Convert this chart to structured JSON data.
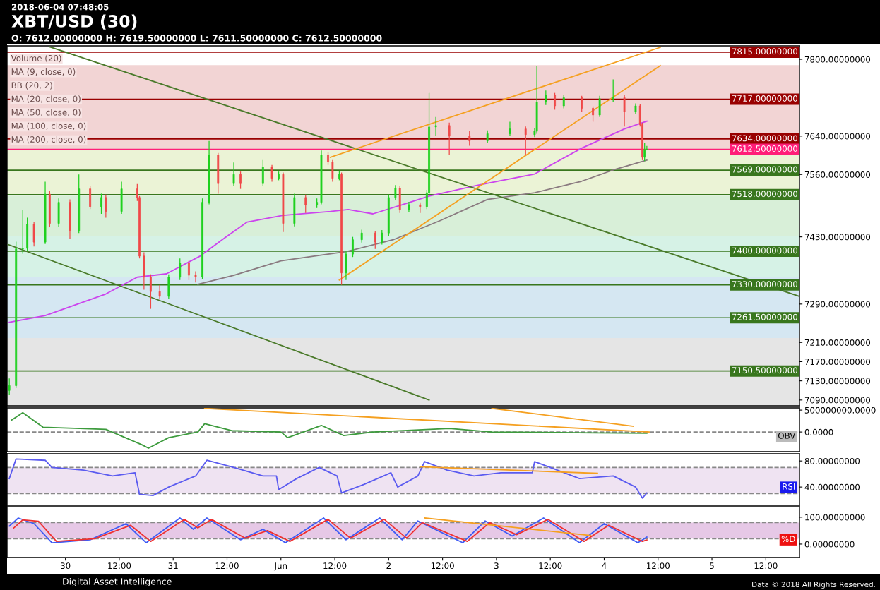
{
  "chart_data": [
    {
      "type": "candlestick",
      "title": "XBT/USD (30)",
      "subtitle": "O: 7612.00000000 H: 7619.50000000 L: 7611.50000000 C: 7612.50000000",
      "annotations": [
        "2018-06-04 07:48:05",
        "Volume (20)",
        "MA (9, close, 0)",
        "BB (20, 2)",
        "MA (20, close, 0)",
        "MA (50, close, 0)",
        "MA (100, close, 0)",
        "MA (200, close, 0)",
        "Digital Asset Intelligence",
        "Data © 2018 All Rights Reserved."
      ],
      "colors": [
        "#1fd11f",
        "#1fd11f",
        "#1fd11f",
        "#1fd11f",
        "#f04848",
        "#1fd11f",
        "#f04848",
        "#1fd11f",
        "#f04848",
        "#1fd11f",
        "#f04848",
        "#1fd11f",
        "#f04848",
        "#1fd11f",
        "#f04848",
        "#f04848",
        "#f04848",
        "#f04848",
        "#f04848",
        "#1fd11f",
        "#1fd11f",
        "#f04848",
        "#f04848",
        "#1fd11f",
        "#1fd11f",
        "#f04848",
        "#1fd11f",
        "#f04848",
        "#1fd11f",
        "#f04848",
        "#1fd11f",
        "#f04848",
        "#1fd11f",
        "#f04848",
        "#1fd11f",
        "#1fd11f",
        "#f04848",
        "#f04848",
        "#1fd11f",
        "#f04848",
        "#1fd11f",
        "#1fd11f",
        "#1fd11f",
        "#f04848",
        "#1fd11f",
        "#1fd11f",
        "#1fd11f",
        "#f04848",
        "#1fd11f",
        "#f04848",
        "#1fd11f",
        "#1fd11f",
        "#1fd11f",
        "#f04848",
        "#f04848",
        "#1fd11f",
        "#1fd11f",
        "#f04848",
        "#1fd11f",
        "#1fd11f",
        "#1fd11f",
        "#f04848",
        "#1fd11f",
        "#f04848",
        "#f04848",
        "#1fd11f",
        "#1fd11f",
        "#f04848",
        "#1fd11f",
        "#f04848",
        "#f04848",
        "#1fd11f",
        "#1fd11f"
      ],
      "x": [
        "2018-05-29T11:30",
        "2018-05-29T13:00",
        "2018-05-29T14:30",
        "2018-05-29T15:30",
        "2018-05-29T17:00",
        "2018-05-29T19:30",
        "2018-05-29T20:30",
        "2018-05-29T22:30",
        "2018-05-30T01:00",
        "2018-05-30T03:00",
        "2018-05-30T05:30",
        "2018-05-30T08:00",
        "2018-05-30T09:00",
        "2018-05-30T12:30",
        "2018-05-30T16:00",
        "2018-05-30T16:30",
        "2018-05-30T17:30",
        "2018-05-30T19:00",
        "2018-05-30T21:00",
        "2018-05-30T23:00",
        "2018-05-31T01:30",
        "2018-05-31T03:30",
        "2018-05-31T05:00",
        "2018-05-31T06:30",
        "2018-05-31T08:00",
        "2018-05-31T10:00",
        "2018-05-31T13:30",
        "2018-05-31T15:00",
        "2018-05-31T20:00",
        "2018-05-31T22:00",
        "2018-05-31T23:30",
        "2018-06-01T00:30",
        "2018-06-01T03:00",
        "2018-06-01T05:30",
        "2018-06-01T08:00",
        "2018-06-01T09:00",
        "2018-06-01T10:30",
        "2018-06-01T11:30",
        "2018-06-01T13:00",
        "2018-06-01T13:30",
        "2018-06-01T14:30",
        "2018-06-01T16:00",
        "2018-06-01T18:00",
        "2018-06-01T21:00",
        "2018-06-01T22:30",
        "2018-06-02T00:00",
        "2018-06-02T01:30",
        "2018-06-02T02:30",
        "2018-06-02T04:30",
        "2018-06-02T07:00",
        "2018-06-02T08:30",
        "2018-06-02T09:00",
        "2018-06-02T10:30",
        "2018-06-02T13:30",
        "2018-06-02T18:00",
        "2018-06-02T22:00",
        "2018-06-03T03:00",
        "2018-06-03T06:30",
        "2018-06-03T08:30",
        "2018-06-03T09:00",
        "2018-06-03T11:00",
        "2018-06-03T13:00",
        "2018-06-03T15:00",
        "2018-06-03T19:00",
        "2018-06-03T21:30",
        "2018-06-03T23:00",
        "2018-06-04T02:00",
        "2018-06-04T04:30",
        "2018-06-04T07:00",
        "2018-06-04T08:00",
        "2018-06-04T08:30",
        "2018-06-04T09:00",
        "2018-06-04T09:30"
      ],
      "ohlc": [
        [
          7110,
          7135,
          7100,
          7120
        ],
        [
          7120,
          7420,
          7115,
          7405
        ],
        [
          7405,
          7487,
          7395,
          7406
        ],
        [
          7406,
          7470,
          7400,
          7456
        ],
        [
          7456,
          7462,
          7410,
          7419
        ],
        [
          7419,
          7545,
          7415,
          7519
        ],
        [
          7519,
          7525,
          7450,
          7458
        ],
        [
          7458,
          7510,
          7450,
          7502
        ],
        [
          7502,
          7508,
          7425,
          7443
        ],
        [
          7443,
          7560,
          7438,
          7530
        ],
        [
          7530,
          7536,
          7488,
          7493
        ],
        [
          7493,
          7520,
          7478,
          7512
        ],
        [
          7512,
          7518,
          7470,
          7483
        ],
        [
          7483,
          7545,
          7478,
          7530
        ],
        [
          7530,
          7540,
          7505,
          7512
        ],
        [
          7512,
          7515,
          7385,
          7390
        ],
        [
          7390,
          7398,
          7320,
          7346
        ],
        [
          7346,
          7352,
          7280,
          7316
        ],
        [
          7316,
          7330,
          7300,
          7306
        ],
        [
          7306,
          7352,
          7300,
          7346
        ],
        [
          7346,
          7385,
          7340,
          7375
        ],
        [
          7375,
          7380,
          7340,
          7350
        ],
        [
          7350,
          7358,
          7335,
          7347
        ],
        [
          7347,
          7510,
          7342,
          7502
        ],
        [
          7502,
          7630,
          7498,
          7600
        ],
        [
          7600,
          7605,
          7520,
          7541
        ],
        [
          7541,
          7585,
          7536,
          7560
        ],
        [
          7560,
          7566,
          7530,
          7541
        ],
        [
          7541,
          7590,
          7536,
          7575
        ],
        [
          7575,
          7580,
          7545,
          7552
        ],
        [
          7552,
          7566,
          7548,
          7560
        ],
        [
          7560,
          7564,
          7440,
          7458
        ],
        [
          7458,
          7520,
          7452,
          7512
        ],
        [
          7512,
          7518,
          7480,
          7497
        ],
        [
          7497,
          7510,
          7490,
          7502
        ],
        [
          7502,
          7610,
          7498,
          7600
        ],
        [
          7600,
          7606,
          7580,
          7586
        ],
        [
          7586,
          7590,
          7545,
          7552
        ],
        [
          7552,
          7568,
          7548,
          7560
        ],
        [
          7560,
          7564,
          7330,
          7355
        ],
        [
          7355,
          7400,
          7340,
          7394
        ],
        [
          7394,
          7430,
          7388,
          7424
        ],
        [
          7424,
          7445,
          7418,
          7438
        ],
        [
          7438,
          7442,
          7405,
          7419
        ],
        [
          7419,
          7444,
          7414,
          7438
        ],
        [
          7438,
          7518,
          7432,
          7512
        ],
        [
          7512,
          7538,
          7506,
          7531
        ],
        [
          7531,
          7536,
          7480,
          7487
        ],
        [
          7487,
          7503,
          7482,
          7497
        ],
        [
          7497,
          7502,
          7480,
          7493
        ],
        [
          7493,
          7528,
          7488,
          7522
        ],
        [
          7522,
          7730,
          7518,
          7659
        ],
        [
          7659,
          7680,
          7640,
          7662
        ],
        [
          7662,
          7668,
          7600,
          7640
        ],
        [
          7640,
          7650,
          7620,
          7630
        ],
        [
          7630,
          7652,
          7625,
          7645
        ],
        [
          7645,
          7670,
          7640,
          7655
        ],
        [
          7655,
          7660,
          7600,
          7643
        ],
        [
          7643,
          7656,
          7638,
          7650
        ],
        [
          7650,
          7787,
          7645,
          7711
        ],
        [
          7711,
          7735,
          7705,
          7725
        ],
        [
          7725,
          7730,
          7695,
          7703
        ],
        [
          7703,
          7726,
          7698,
          7720
        ],
        [
          7720,
          7724,
          7690,
          7698
        ],
        [
          7698,
          7702,
          7670,
          7684
        ],
        [
          7684,
          7724,
          7680,
          7718
        ],
        [
          7718,
          7758,
          7712,
          7720
        ],
        [
          7720,
          7725,
          7660,
          7691
        ],
        [
          7691,
          7708,
          7686,
          7703
        ],
        [
          7703,
          7706,
          7660,
          7664
        ],
        [
          7664,
          7668,
          7590,
          7596
        ],
        [
          7596,
          7625,
          7588,
          7612
        ],
        [
          7612,
          7619.5,
          7611.5,
          7612.5
        ]
      ],
      "series": [
        {
          "type": "line",
          "color": "#cc44ee",
          "x": [
            "2018-05-29T11:30",
            "2018-05-29T19:30",
            "2018-05-30T09:00",
            "2018-05-30T16:00",
            "2018-05-30T22:30",
            "2018-05-31T06:00",
            "2018-05-31T11:30",
            "2018-05-31T16:30",
            "2018-06-01T00:30",
            "2018-06-01T11:00",
            "2018-06-01T15:00",
            "2018-06-01T20:30",
            "2018-06-02T03:00",
            "2018-06-02T09:00",
            "2018-06-02T19:30",
            "2018-06-03T08:30",
            "2018-06-03T19:00",
            "2018-06-04T04:30",
            "2018-06-04T09:30"
          ],
          "values": [
            7252,
            7266,
            7311,
            7346,
            7353,
            7390,
            7428,
            7461,
            7475,
            7483,
            7487,
            7478,
            7497,
            7515,
            7537,
            7561,
            7615,
            7655,
            7671
          ]
        },
        {
          "type": "line",
          "color": "#8a7a80",
          "x": [
            "2018-05-31T05:30",
            "2018-05-31T13:30",
            "2018-06-01T00:00",
            "2018-06-01T10:30",
            "2018-06-01T14:30",
            "2018-06-02T01:00",
            "2018-06-02T11:30",
            "2018-06-02T22:00",
            "2018-06-03T08:30",
            "2018-06-03T19:00",
            "2018-06-04T02:30",
            "2018-06-04T09:30"
          ],
          "values": [
            7331,
            7350,
            7380,
            7394,
            7399,
            7424,
            7464,
            7508,
            7522,
            7546,
            7571,
            7590
          ]
        },
        {
          "type": "line",
          "color": "#4a7a2a",
          "x": [
            "2018-05-29T20:30",
            "2018-06-05T19:30"
          ],
          "values": [
            7826,
            7306
          ]
        },
        {
          "type": "line",
          "color": "#4a7a2a",
          "x": [
            "2018-05-29T11:15",
            "2018-06-02T09:00"
          ],
          "values": [
            7414,
            7090
          ]
        },
        {
          "type": "line",
          "color": "#f5a020",
          "x": [
            "2018-06-01T11:00",
            "2018-06-04T12:30"
          ],
          "values": [
            7596,
            7825
          ]
        },
        {
          "type": "line",
          "color": "#f5a020",
          "x": [
            "2018-06-01T13:00",
            "2018-06-04T12:30"
          ],
          "values": [
            7340,
            7787
          ]
        }
      ],
      "bands": [
        {
          "axis": "y",
          "from": 7612.5,
          "to": 7788,
          "color": "#f2d4d4"
        },
        {
          "axis": "y",
          "from": 7516,
          "to": 7612.5,
          "color": "#ebf3d6"
        },
        {
          "axis": "y",
          "from": 7431,
          "to": 7516,
          "color": "#d8efd8"
        },
        {
          "axis": "y",
          "from": 7346,
          "to": 7431,
          "color": "#d6f2e6"
        },
        {
          "axis": "y",
          "from": 7219,
          "to": 7346,
          "color": "#d5e7f2"
        },
        {
          "axis": "y",
          "from": 7078,
          "to": 7219,
          "color": "#e5e5e5"
        }
      ],
      "ref_lines": [
        {
          "axis": "y",
          "value": 7815,
          "label": "7815.00000000",
          "color": "#990000"
        },
        {
          "axis": "y",
          "value": 7717,
          "label": "7717.00000000",
          "color": "#990000"
        },
        {
          "axis": "y",
          "value": 7634,
          "label": "7634.00000000",
          "color": "#990000"
        },
        {
          "axis": "y",
          "value": 7612.5,
          "label": "7612.50000000",
          "color": "#ff1e78"
        },
        {
          "axis": "y",
          "value": 7569,
          "label": "7569.00000000",
          "color": "#38761d"
        },
        {
          "axis": "y",
          "value": 7518,
          "label": "7518.00000000",
          "color": "#38761d"
        },
        {
          "axis": "y",
          "value": 7400,
          "label": "7400.00000000",
          "color": "#38761d"
        },
        {
          "axis": "y",
          "value": 7330,
          "label": "7330.00000000",
          "color": "#38761d"
        },
        {
          "axis": "y",
          "value": 7261.5,
          "label": "7261.50000000",
          "color": "#38761d"
        },
        {
          "axis": "y",
          "value": 7150.5,
          "label": "7150.50000000",
          "color": "#38761d"
        }
      ],
      "ylim": [
        7078,
        7828
      ],
      "yticks": [
        {
          "value": 7800,
          "label": "7800.00000000"
        },
        {
          "value": 7640,
          "label": "7640.00000000"
        },
        {
          "value": 7560,
          "label": "7560.00000000"
        },
        {
          "value": 7430,
          "label": "7430.00000000"
        },
        {
          "value": 7290,
          "label": "7290.00000000"
        },
        {
          "value": 7210,
          "label": "7210.00000000"
        },
        {
          "value": 7170,
          "label": "7170.00000000"
        },
        {
          "value": 7130,
          "label": "7130.00000000"
        },
        {
          "value": 7090,
          "label": "7090.00000000"
        }
      ],
      "xlim": [
        "2018-05-29T11:00",
        "2018-06-05T19:30"
      ],
      "tick_labels": "y",
      "grid": false,
      "legend": false
    },
    {
      "type": "line",
      "annotations": [
        "OBV"
      ],
      "series": [
        {
          "type": "line",
          "color": "#3d9b3d",
          "x": [
            "2018-05-29T12:00",
            "2018-05-29T14:30",
            "2018-05-29T19:00",
            "2018-05-30T09:00",
            "2018-05-30T17:00",
            "2018-05-30T18:30",
            "2018-05-30T23:00",
            "2018-05-31T05:30",
            "2018-05-31T07:00",
            "2018-05-31T13:00",
            "2018-06-01T00:00",
            "2018-06-01T01:30",
            "2018-06-01T09:00",
            "2018-06-01T14:00",
            "2018-06-01T20:30",
            "2018-06-02T13:30",
            "2018-06-02T23:00",
            "2018-06-03T22:30",
            "2018-06-04T09:30"
          ],
          "values": [
            270000000,
            440000000,
            110000000,
            60000000,
            -290000000,
            -370000000,
            -130000000,
            0,
            190000000,
            30000000,
            0,
            -130000000,
            150000000,
            -80000000,
            0,
            80000000,
            0,
            -20000000,
            -30000000
          ]
        },
        {
          "type": "line",
          "color": "#f5a020",
          "x": [
            "2018-05-31T07:00",
            "2018-06-04T10:00"
          ],
          "values": [
            540000000,
            0
          ]
        },
        {
          "type": "line",
          "color": "#f5a020",
          "x": [
            "2018-06-02T23:00",
            "2018-06-04T06:30"
          ],
          "values": [
            540000000,
            130000000
          ]
        }
      ],
      "ref_lines": [
        {
          "axis": "y",
          "value": 0,
          "color": "#888888",
          "line_style": "dashed"
        }
      ],
      "ylim": [
        -450000000,
        550000000
      ],
      "yticks": [
        {
          "value": 500000000,
          "label": "500000000.0000"
        },
        {
          "value": 0,
          "label": "0.0000"
        }
      ],
      "xlim": [
        "2018-05-29T11:00",
        "2018-06-05T19:30"
      ],
      "tick_labels": "y",
      "grid": false,
      "legend": false
    },
    {
      "type": "line",
      "annotations": [
        "RSI"
      ],
      "series": [
        {
          "type": "line",
          "color": "#5b5bf0",
          "x": [
            "2018-05-29T11:30",
            "2018-05-29T13:00",
            "2018-05-29T19:30",
            "2018-05-29T21:00",
            "2018-05-30T04:00",
            "2018-05-30T10:30",
            "2018-05-30T15:30",
            "2018-05-30T16:30",
            "2018-05-30T19:30",
            "2018-05-30T23:00",
            "2018-05-31T05:00",
            "2018-05-31T07:30",
            "2018-05-31T13:30",
            "2018-05-31T20:00",
            "2018-05-31T23:00",
            "2018-05-31T23:30",
            "2018-06-01T03:30",
            "2018-06-01T08:30",
            "2018-06-01T12:30",
            "2018-06-01T13:30",
            "2018-06-01T18:30",
            "2018-06-02T00:30",
            "2018-06-02T02:00",
            "2018-06-02T06:30",
            "2018-06-02T08:00",
            "2018-06-02T13:00",
            "2018-06-02T19:00",
            "2018-06-03T01:00",
            "2018-06-03T08:00",
            "2018-06-03T08:30",
            "2018-06-03T12:00",
            "2018-06-03T18:30",
            "2018-06-04T02:00",
            "2018-06-04T07:00",
            "2018-06-04T08:30",
            "2018-06-04T09:30"
          ],
          "values": [
            53,
            83,
            81,
            70,
            66,
            57,
            62,
            29,
            27,
            40,
            57,
            81,
            70,
            57,
            57,
            36,
            53,
            70,
            57,
            31,
            44,
            62,
            40,
            57,
            79,
            66,
            57,
            62,
            62,
            79,
            70,
            53,
            57,
            40,
            23,
            31
          ]
        },
        {
          "type": "line",
          "color": "#f5a020",
          "x": [
            "2018-06-02T07:00",
            "2018-06-03T22:30"
          ],
          "values": [
            71,
            61
          ]
        }
      ],
      "bands": [
        {
          "axis": "y",
          "from": 30,
          "to": 70,
          "color": "#efe3f2"
        }
      ],
      "ref_lines": [
        {
          "axis": "y",
          "value": 70,
          "color": "#888888",
          "line_style": "dashed"
        },
        {
          "axis": "y",
          "value": 30,
          "color": "#888888",
          "line_style": "dashed"
        }
      ],
      "ylim": [
        12,
        91
      ],
      "yticks": [
        {
          "value": 80,
          "label": "80.00000000"
        },
        {
          "value": 40,
          "label": "40.00000000"
        }
      ],
      "xlim": [
        "2018-05-29T11:00",
        "2018-06-05T19:30"
      ],
      "tick_labels": "y",
      "grid": false,
      "legend": false
    },
    {
      "type": "line",
      "annotations": [
        "%D"
      ],
      "series": [
        {
          "type": "line",
          "color": "#3f5cf5",
          "x": [
            "2018-05-29T11:30",
            "2018-05-29T13:30",
            "2018-05-29T17:00",
            "2018-05-29T21:00",
            "2018-05-30T05:30",
            "2018-05-30T13:30",
            "2018-05-30T18:00",
            "2018-05-31T01:30",
            "2018-05-31T04:30",
            "2018-05-31T07:30",
            "2018-05-31T15:00",
            "2018-05-31T20:00",
            "2018-06-01T01:00",
            "2018-06-01T09:30",
            "2018-06-01T14:30",
            "2018-06-01T22:00",
            "2018-06-02T03:00",
            "2018-06-02T06:30",
            "2018-06-02T16:30",
            "2018-06-02T21:30",
            "2018-06-03T03:30",
            "2018-06-03T10:30",
            "2018-06-03T18:30",
            "2018-06-04T00:00",
            "2018-06-04T07:30",
            "2018-06-04T09:30"
          ],
          "values": [
            67,
            97,
            76,
            5,
            16,
            76,
            5,
            97,
            55,
            97,
            16,
            55,
            5,
            97,
            16,
            97,
            16,
            86,
            5,
            86,
            30,
            97,
            5,
            76,
            5,
            26
          ]
        },
        {
          "type": "line",
          "color": "#f03030",
          "x": [
            "2018-05-29T12:30",
            "2018-05-29T14:30",
            "2018-05-29T18:00",
            "2018-05-29T22:00",
            "2018-05-30T06:30",
            "2018-05-30T14:30",
            "2018-05-30T19:00",
            "2018-05-31T02:30",
            "2018-05-31T05:30",
            "2018-05-31T08:30",
            "2018-05-31T16:00",
            "2018-05-31T21:00",
            "2018-06-01T02:00",
            "2018-06-01T10:30",
            "2018-06-01T15:30",
            "2018-06-01T23:00",
            "2018-06-02T04:00",
            "2018-06-02T07:30",
            "2018-06-02T17:30",
            "2018-06-02T22:30",
            "2018-06-03T04:30",
            "2018-06-03T11:30",
            "2018-06-03T19:30",
            "2018-06-04T01:00",
            "2018-06-04T08:30",
            "2018-06-04T09:30"
          ],
          "values": [
            60,
            90,
            85,
            10,
            20,
            70,
            10,
            92,
            60,
            92,
            22,
            50,
            10,
            92,
            22,
            92,
            22,
            80,
            10,
            80,
            35,
            92,
            10,
            70,
            10,
            15
          ]
        },
        {
          "type": "line",
          "color": "#f5a020",
          "x": [
            "2018-06-02T08:00",
            "2018-06-03T21:00"
          ],
          "values": [
            97,
            32
          ]
        }
      ],
      "bands": [
        {
          "axis": "y",
          "from": 20,
          "to": 80,
          "color": "#e6c8e6"
        }
      ],
      "ref_lines": [
        {
          "axis": "y",
          "value": 80,
          "color": "#888888",
          "line_style": "dashed"
        },
        {
          "axis": "y",
          "value": 20,
          "color": "#888888",
          "line_style": "dashed"
        }
      ],
      "ylim": [
        -50,
        139
      ],
      "yticks": [
        {
          "value": 100,
          "label": "100.00000000"
        },
        {
          "value": 0,
          "label": "0.00000000"
        }
      ],
      "xlim": [
        "2018-05-29T11:00",
        "2018-06-05T19:30"
      ],
      "xticks": [
        {
          "value": "2018-05-30",
          "label": "30"
        },
        {
          "value": "2018-05-30T12:00",
          "label": "12:00"
        },
        {
          "value": "2018-05-31",
          "label": "31"
        },
        {
          "value": "2018-05-31T12:00",
          "label": "12:00"
        },
        {
          "value": "2018-06-01",
          "label": "Jun"
        },
        {
          "value": "2018-06-01T12:00",
          "label": "12:00"
        },
        {
          "value": "2018-06-02",
          "label": "2"
        },
        {
          "value": "2018-06-02T12:00",
          "label": "12:00"
        },
        {
          "value": "2018-06-03",
          "label": "3"
        },
        {
          "value": "2018-06-03T12:00",
          "label": "12:00"
        },
        {
          "value": "2018-06-04",
          "label": "4"
        },
        {
          "value": "2018-06-04T12:00",
          "label": "12:00"
        },
        {
          "value": "2018-06-05",
          "label": "5"
        },
        {
          "value": "2018-06-05T12:00",
          "label": "12:00"
        }
      ],
      "grid": false,
      "legend": false
    }
  ]
}
